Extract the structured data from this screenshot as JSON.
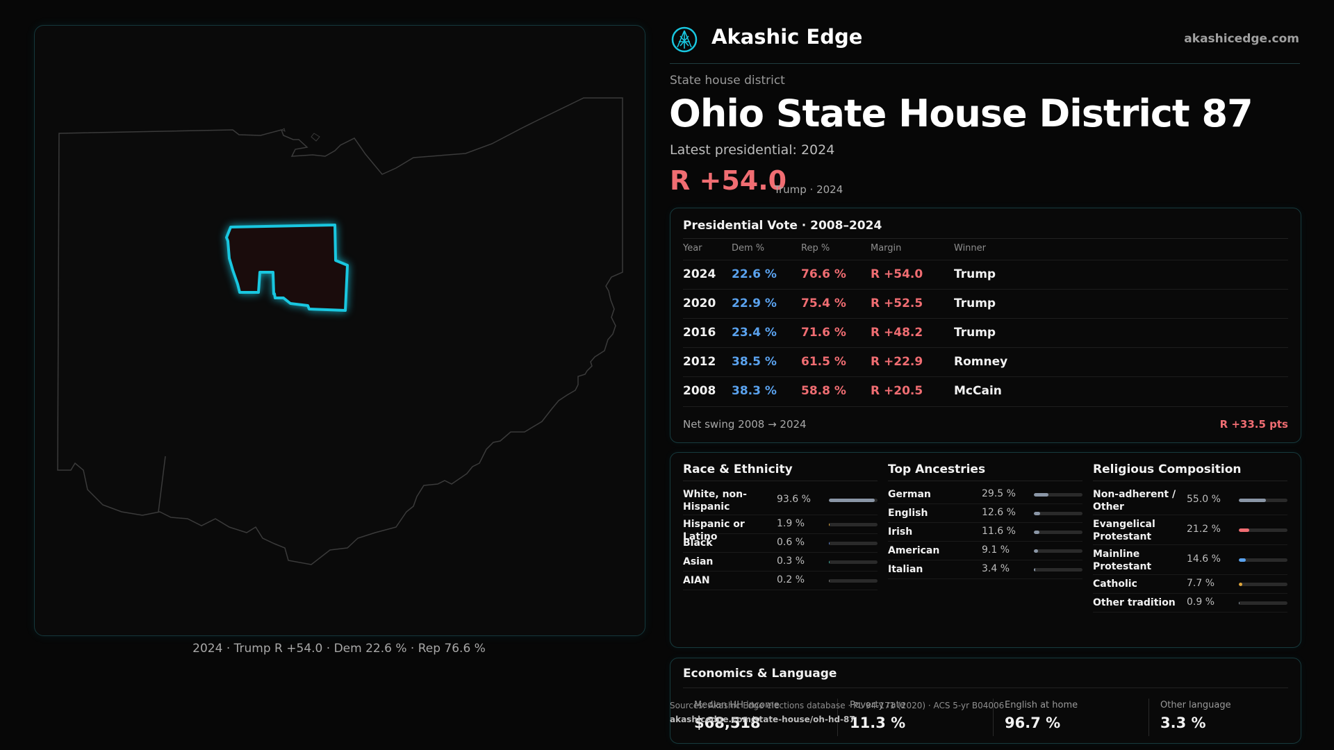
{
  "brand": {
    "name": "Akashic Edge",
    "url": "akashicedge.com",
    "logo_icon": "akashic-edge-logo-icon"
  },
  "district": {
    "type_label": "State house district",
    "title": "Ohio State House District 87",
    "latest_pres": "Latest presidential: 2024",
    "margin": "R +54.0",
    "margin_sub": "Trump · 2024"
  },
  "map": {
    "caption": "2024 · Trump R +54.0 · Dem 22.6 % · Rep 76.6 %"
  },
  "presidential": {
    "title": "Presidential Vote · 2008–2024",
    "headers": {
      "year": "Year",
      "dem": "Dem %",
      "rep": "Rep %",
      "margin": "Margin",
      "winner": "Winner"
    },
    "rows": [
      {
        "year": "2024",
        "dem": "22.6 %",
        "rep": "76.6 %",
        "margin": "R +54.0",
        "winner": "Trump"
      },
      {
        "year": "2020",
        "dem": "22.9 %",
        "rep": "75.4 %",
        "margin": "R +52.5",
        "winner": "Trump"
      },
      {
        "year": "2016",
        "dem": "23.4 %",
        "rep": "71.6 %",
        "margin": "R +48.2",
        "winner": "Trump"
      },
      {
        "year": "2012",
        "dem": "38.5 %",
        "rep": "61.5 %",
        "margin": "R +22.9",
        "winner": "Romney"
      },
      {
        "year": "2008",
        "dem": "38.3 %",
        "rep": "58.8 %",
        "margin": "R +20.5",
        "winner": "McCain"
      }
    ],
    "swing_label": "Net swing 2008 → 2024",
    "swing_value": "R +33.5 pts"
  },
  "race": {
    "title": "Race & Ethnicity",
    "items": [
      {
        "label": "White, non-Hispanic",
        "value": "93.6 %",
        "pct": 93.6,
        "color": "#8a96a6"
      },
      {
        "label": "Hispanic or Latino",
        "value": "1.9 %",
        "pct": 1.9,
        "color": "#e0a63a"
      },
      {
        "label": "Black",
        "value": "0.6 %",
        "pct": 0.6,
        "color": "#5a7fd0"
      },
      {
        "label": "Asian",
        "value": "0.3 %",
        "pct": 0.3,
        "color": "#3ab0a0"
      },
      {
        "label": "AIAN",
        "value": "0.2 %",
        "pct": 0.2,
        "color": "#7a7a7a"
      }
    ]
  },
  "ancestry": {
    "title": "Top Ancestries",
    "items": [
      {
        "label": "German",
        "value": "29.5 %",
        "pct": 29.5,
        "color": "#8a96a6"
      },
      {
        "label": "English",
        "value": "12.6 %",
        "pct": 12.6,
        "color": "#8a96a6"
      },
      {
        "label": "Irish",
        "value": "11.6 %",
        "pct": 11.6,
        "color": "#8a96a6"
      },
      {
        "label": "American",
        "value": "9.1 %",
        "pct": 9.1,
        "color": "#8a96a6"
      },
      {
        "label": "Italian",
        "value": "3.4 %",
        "pct": 3.4,
        "color": "#8a96a6"
      }
    ]
  },
  "religion": {
    "title": "Religious Composition",
    "items": [
      {
        "label": "Non-adherent / Other",
        "value": "55.0 %",
        "pct": 55.0,
        "color": "#8a96a6"
      },
      {
        "label": "Evangelical Protestant",
        "value": "21.2 %",
        "pct": 21.2,
        "color": "#f06d72"
      },
      {
        "label": "Mainline Protestant",
        "value": "14.6 %",
        "pct": 14.6,
        "color": "#5aa2ee"
      },
      {
        "label": "Catholic",
        "value": "7.7 %",
        "pct": 7.7,
        "color": "#e0a63a"
      },
      {
        "label": "Other tradition",
        "value": "0.9 %",
        "pct": 0.9,
        "color": "#8a96a6"
      }
    ]
  },
  "economics": {
    "title": "Economics & Language",
    "cells": [
      {
        "label": "Median HH income",
        "value": "$68,518"
      },
      {
        "label": "Poverty rate",
        "value": "11.3 %"
      },
      {
        "label": "English at home",
        "value": "96.7 %"
      },
      {
        "label": "Other language",
        "value": "3.3 %"
      }
    ]
  },
  "source": {
    "line1": "Sources: Akashic Edge elections database · PL 94-171 (2020) · ACS 5-yr B04006",
    "line2": "akashicedge.com/state-house/oh-hd-87"
  },
  "colors": {
    "dem": "#5aa2ee",
    "rep": "#f06d72",
    "accent": "#19c7e0"
  }
}
